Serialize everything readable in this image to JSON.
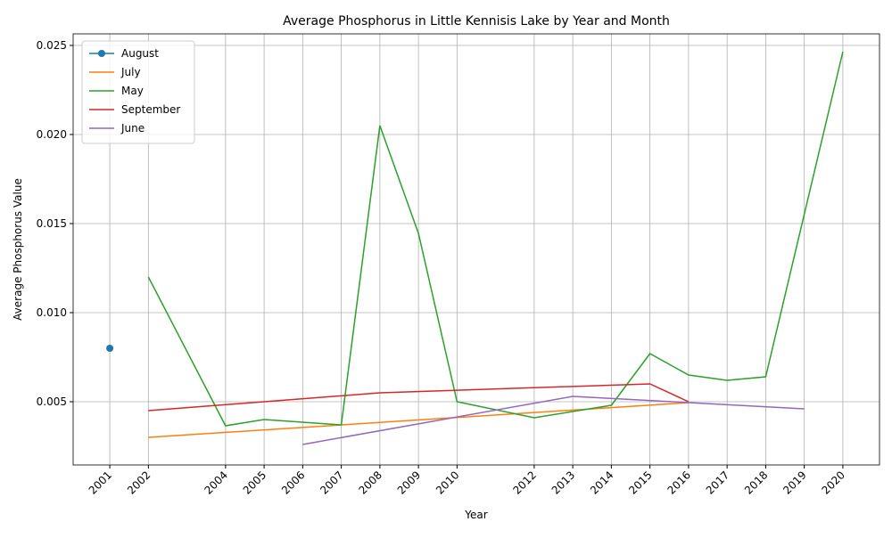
{
  "chart_data": {
    "type": "line",
    "title": "Average Phosphorus in Little Kennisis Lake by Year and Month",
    "x_label": "Year",
    "y_label": "Average Phosphorus Value",
    "xlim": [
      2000.05,
      2020.95
    ],
    "ylim": [
      0.00145,
      0.02565
    ],
    "xticks": [
      2001,
      2002,
      2004,
      2005,
      2006,
      2007,
      2008,
      2009,
      2010,
      2012,
      2013,
      2014,
      2015,
      2016,
      2017,
      2018,
      2019,
      2020
    ],
    "yticks": [
      0.005,
      {
        "value": 0.01,
        "label": "0.010"
      },
      0.015,
      {
        "value": 0.02,
        "label": "0.020"
      },
      0.025
    ],
    "grid": true,
    "legend": "upper-left",
    "series": [
      {
        "name": "August",
        "color": "#1f77b4",
        "marker": true,
        "x": [
          2001
        ],
        "values": [
          0.008
        ]
      },
      {
        "name": "July",
        "color": "#ff7f0e",
        "x": [
          2002,
          2016
        ],
        "values": [
          0.003,
          0.00495
        ]
      },
      {
        "name": "May",
        "color": "#2ca02c",
        "x": [
          2002,
          2004,
          2005,
          2007,
          2008,
          2009,
          2010,
          2012,
          2014,
          2015,
          2016,
          2017,
          2018,
          2020
        ],
        "values": [
          0.012,
          0.00365,
          0.004,
          0.0037,
          0.0205,
          0.01445,
          0.005,
          0.0041,
          0.0048,
          0.0077,
          0.0065,
          0.0062,
          0.0064,
          0.02465
        ]
      },
      {
        "name": "September",
        "color": "#d62728",
        "x": [
          2002,
          2005,
          2008,
          2015,
          2016
        ],
        "values": [
          0.0045,
          0.005,
          0.0055,
          0.006,
          0.005
        ]
      },
      {
        "name": "June",
        "color": "#9467bd",
        "x": [
          2006,
          2013,
          2016,
          2019
        ],
        "values": [
          0.0026,
          0.0053,
          0.00495,
          0.0046
        ]
      }
    ]
  }
}
